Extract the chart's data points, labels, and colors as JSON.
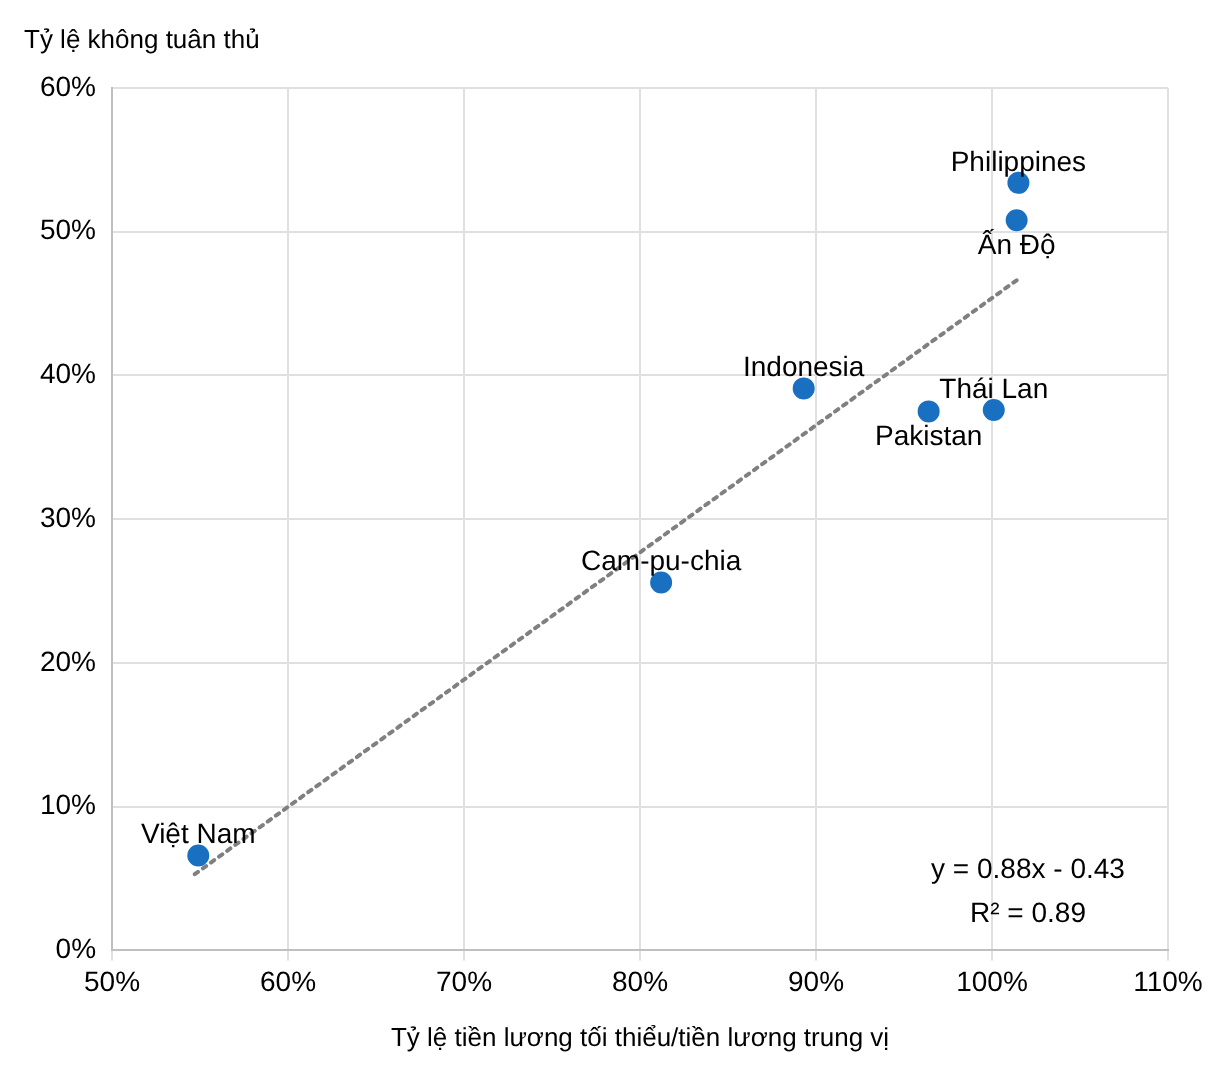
{
  "chart_data": {
    "type": "scatter",
    "xlabel": "Tỷ lệ tiền lương tối thiểu/tiền lương trung vị",
    "ylabel": "Tỷ lệ không tuân thủ",
    "x": [
      54.9,
      81.2,
      89.3,
      100.1,
      96.4,
      101.4,
      101.5
    ],
    "series": [
      {
        "color": "#1a70c0",
        "values": [
          6.6,
          25.6,
          39.1,
          37.6,
          37.5,
          50.8,
          53.4
        ]
      },
      {
        "type": "line",
        "color": "#808080",
        "line_style": "dotted",
        "marker": "none",
        "x": [
          54.7,
          101.6
        ],
        "values": [
          5.3,
          46.8
        ]
      }
    ],
    "marker": "circle",
    "xlim": [
      50,
      110
    ],
    "xticks": [
      {
        "value": 50,
        "label": "50%"
      },
      {
        "value": 60,
        "label": "60%"
      },
      {
        "value": 70,
        "label": "70%"
      },
      {
        "value": 80,
        "label": "80%"
      },
      {
        "value": 90,
        "label": "90%"
      },
      {
        "value": 100,
        "label": "100%"
      },
      {
        "value": 110,
        "label": "110%"
      }
    ],
    "ylim": [
      0,
      60
    ],
    "yticks": [
      {
        "value": 0,
        "label": "0%"
      },
      {
        "value": 10,
        "label": "10%"
      },
      {
        "value": 20,
        "label": "20%"
      },
      {
        "value": 30,
        "label": "30%"
      },
      {
        "value": 40,
        "label": "40%"
      },
      {
        "value": 50,
        "label": "50%"
      },
      {
        "value": 60,
        "label": "60%"
      }
    ],
    "grid": true,
    "legend": false,
    "annotations": [
      {
        "text": "Việt Nam",
        "x": 54.9,
        "y": 6.6
      },
      {
        "text": "Cam-pu-chia",
        "x": 81.2,
        "y": 25.6
      },
      {
        "text": "Indonesia",
        "x": 89.3,
        "y": 39.1
      },
      {
        "text": "Thái Lan",
        "x": 100.1,
        "y": 37.6
      },
      {
        "text": "Pakistan",
        "x": 96.4,
        "y": 37.5
      },
      {
        "text": "Ấn Độ",
        "x": 101.4,
        "y": 50.8
      },
      {
        "text": "Philippines",
        "x": 101.5,
        "y": 53.4
      },
      "y = 0.88x - 0.43",
      "R² = 0.89"
    ]
  }
}
